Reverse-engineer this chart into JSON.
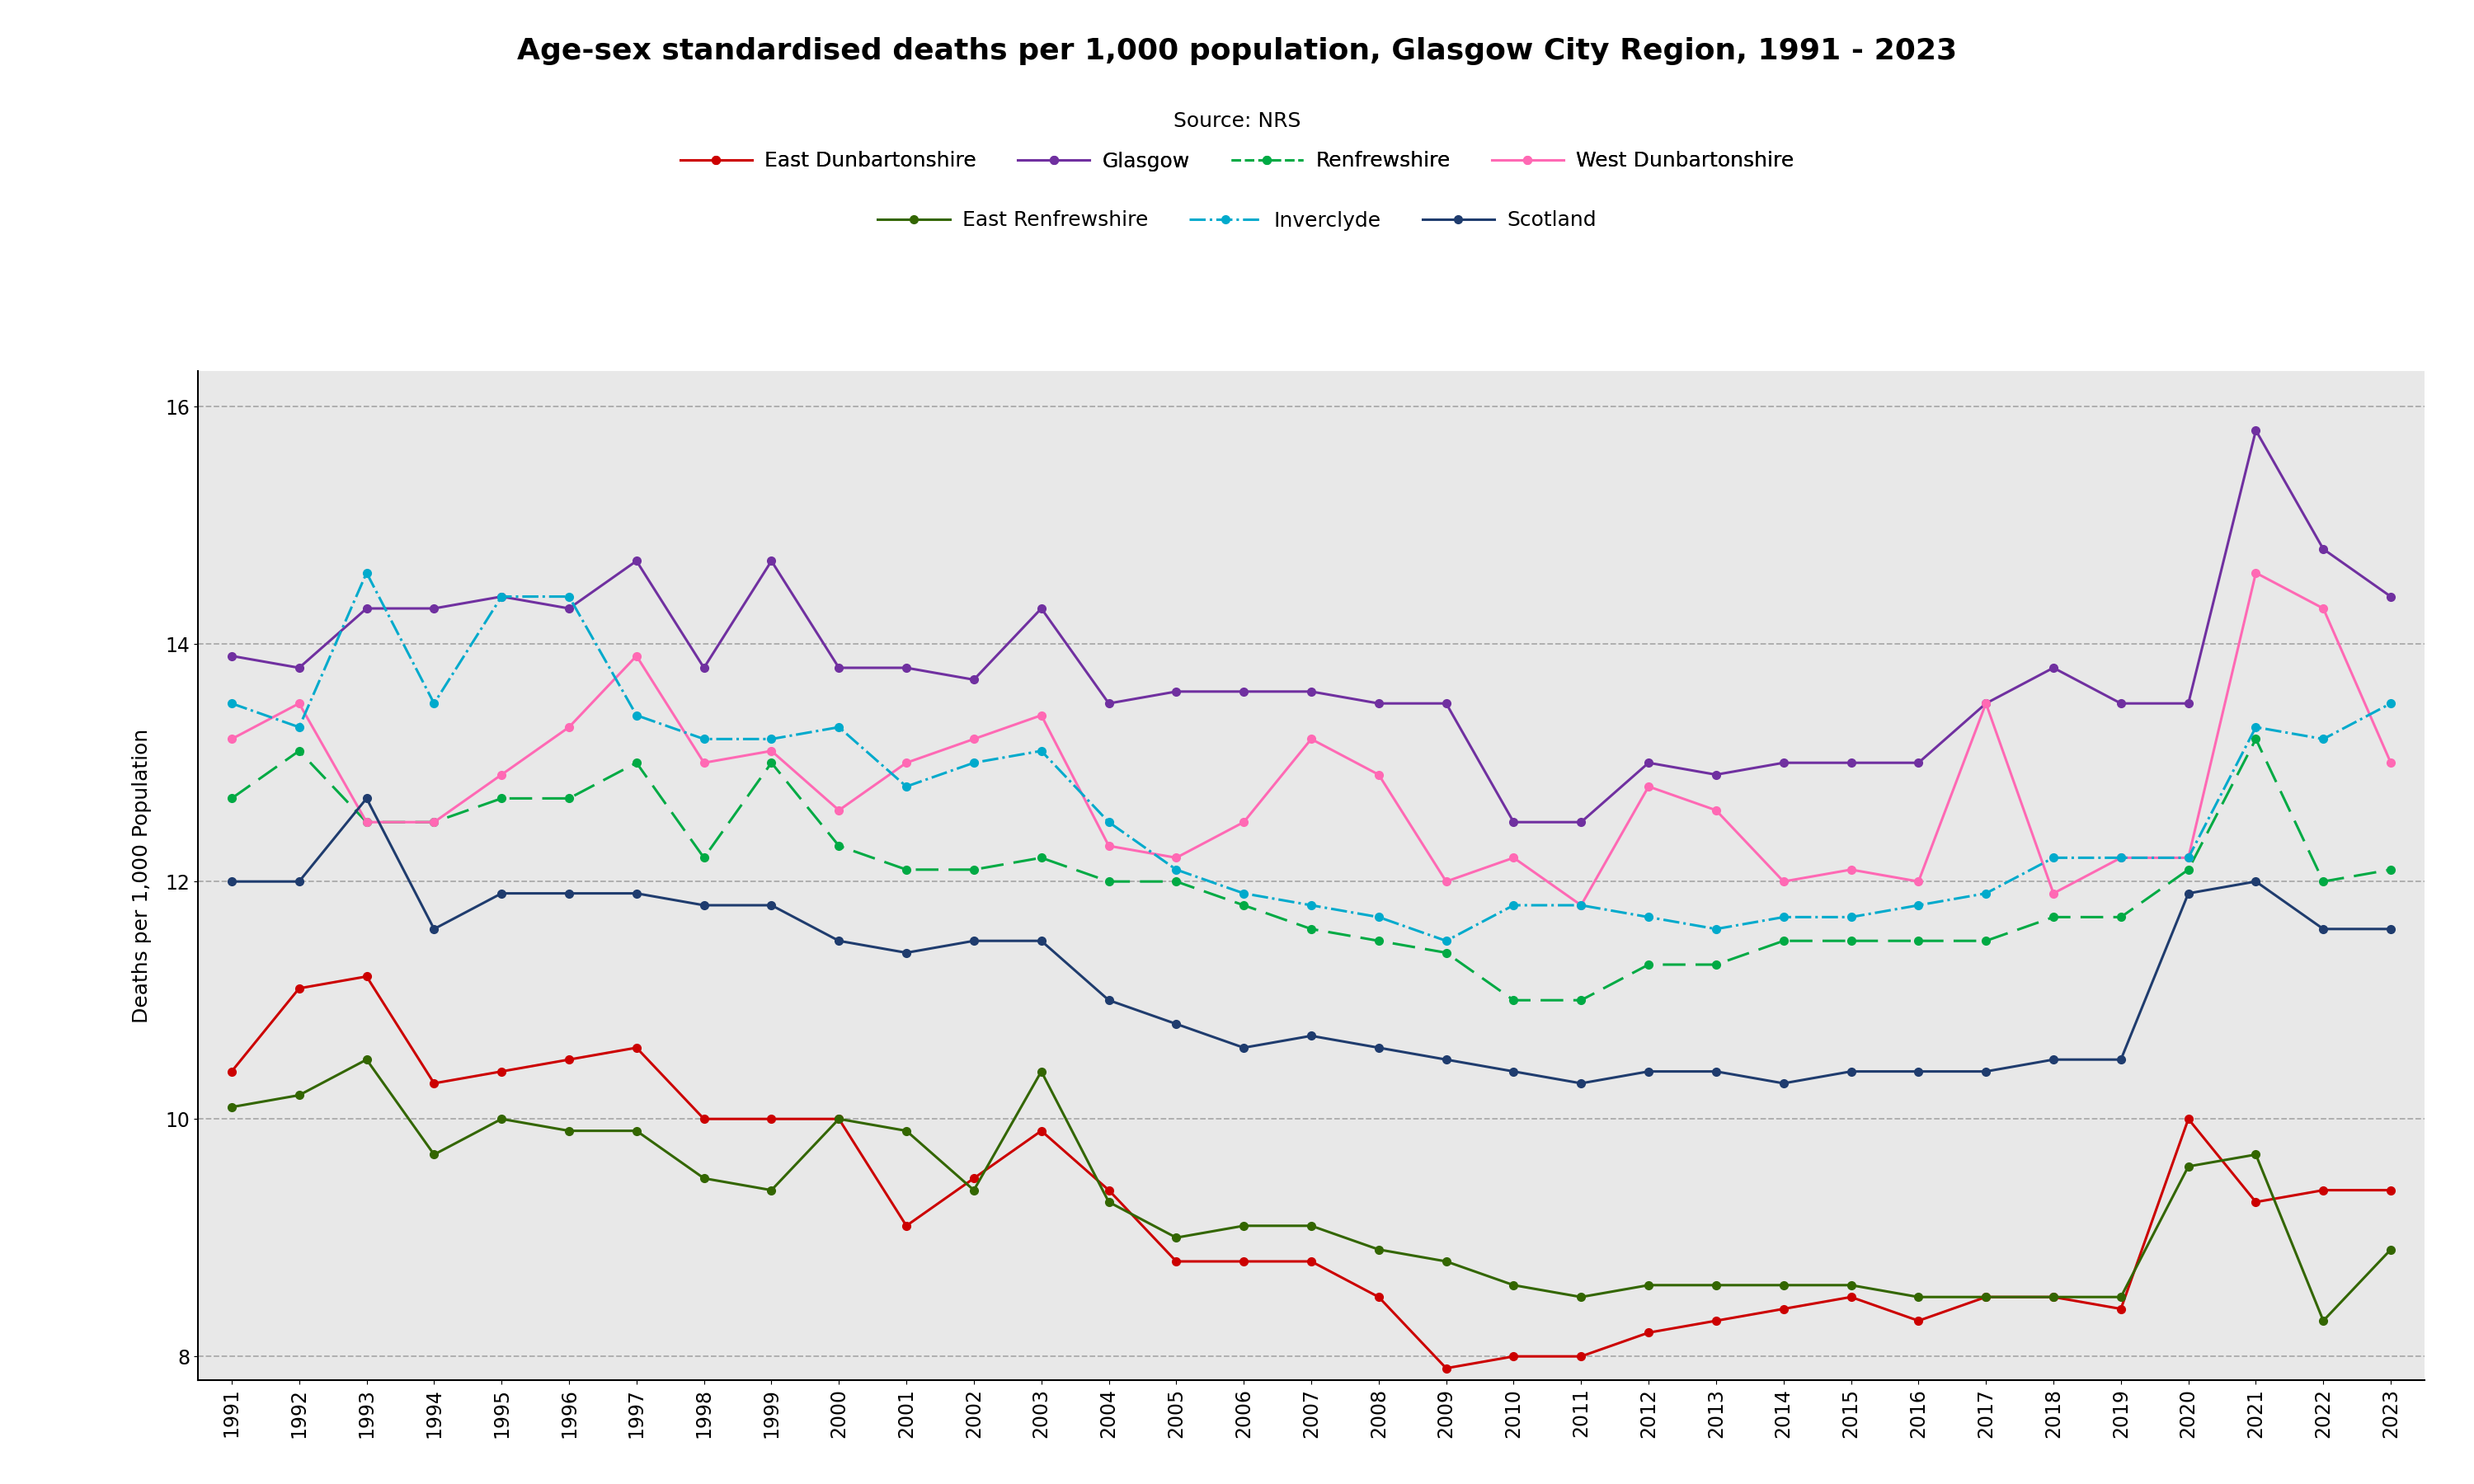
{
  "title": "Age-sex standardised deaths per 1,000 population, Glasgow City Region, 1991 - 2023",
  "source": "Source: NRS",
  "ylabel": "Deaths per 1,000 Population",
  "years": [
    1991,
    1992,
    1993,
    1994,
    1995,
    1996,
    1997,
    1998,
    1999,
    2000,
    2001,
    2002,
    2003,
    2004,
    2005,
    2006,
    2007,
    2008,
    2009,
    2010,
    2011,
    2012,
    2013,
    2014,
    2015,
    2016,
    2017,
    2018,
    2019,
    2020,
    2021,
    2022,
    2023
  ],
  "series": {
    "East Dunbartonshire": {
      "color": "#cc0000",
      "linestyle": "-",
      "marker": "o",
      "markersize": 7,
      "linewidth": 2.2,
      "values": [
        10.4,
        11.1,
        11.2,
        10.3,
        10.4,
        10.5,
        10.6,
        10.0,
        10.0,
        10.0,
        9.1,
        9.5,
        9.9,
        9.4,
        8.8,
        8.8,
        8.8,
        8.5,
        7.9,
        8.0,
        8.0,
        8.2,
        8.3,
        8.4,
        8.5,
        8.3,
        8.5,
        8.5,
        8.4,
        10.0,
        9.3,
        9.4,
        9.4
      ]
    },
    "Glasgow": {
      "color": "#7030a0",
      "linestyle": "-",
      "marker": "o",
      "markersize": 7,
      "linewidth": 2.2,
      "values": [
        13.9,
        13.8,
        14.3,
        14.3,
        14.4,
        14.3,
        14.7,
        13.8,
        14.7,
        13.8,
        13.8,
        13.7,
        14.3,
        13.5,
        13.6,
        13.6,
        13.6,
        13.5,
        13.5,
        12.5,
        12.5,
        13.0,
        12.9,
        13.0,
        13.0,
        13.0,
        13.5,
        13.8,
        13.5,
        13.5,
        15.8,
        14.8,
        14.4
      ]
    },
    "Renfrewshire": {
      "color": "#00aa44",
      "linestyle": "--",
      "marker": "o",
      "markersize": 7,
      "linewidth": 2.2,
      "values": [
        12.7,
        13.1,
        12.5,
        12.5,
        12.7,
        12.7,
        13.0,
        12.2,
        13.0,
        12.3,
        12.1,
        12.1,
        12.2,
        12.0,
        12.0,
        11.8,
        11.6,
        11.5,
        11.4,
        11.0,
        11.0,
        11.3,
        11.3,
        11.5,
        11.5,
        11.5,
        11.5,
        11.7,
        11.7,
        12.1,
        13.2,
        12.0,
        12.1
      ]
    },
    "West Dunbartonshire": {
      "color": "#ff69b4",
      "linestyle": "-",
      "marker": "o",
      "markersize": 7,
      "linewidth": 2.2,
      "values": [
        13.2,
        13.5,
        12.5,
        12.5,
        12.9,
        13.3,
        13.9,
        13.0,
        13.1,
        12.6,
        13.0,
        13.2,
        13.4,
        12.3,
        12.2,
        12.5,
        13.2,
        12.9,
        12.0,
        12.2,
        11.8,
        12.8,
        12.6,
        12.0,
        12.1,
        12.0,
        13.5,
        11.9,
        12.2,
        12.2,
        14.6,
        14.3,
        13.0
      ]
    },
    "East Renfrewshire": {
      "color": "#336600",
      "linestyle": "-",
      "marker": "o",
      "markersize": 7,
      "linewidth": 2.2,
      "values": [
        10.1,
        10.2,
        10.5,
        9.7,
        10.0,
        9.9,
        9.9,
        9.5,
        9.4,
        10.0,
        9.9,
        9.4,
        10.4,
        9.3,
        9.0,
        9.1,
        9.1,
        8.9,
        8.8,
        8.6,
        8.5,
        8.6,
        8.6,
        8.6,
        8.6,
        8.5,
        8.5,
        8.5,
        8.5,
        9.6,
        9.7,
        8.3,
        8.9
      ]
    },
    "Inverclyde": {
      "color": "#00aacc",
      "linestyle": "-.",
      "marker": "o",
      "markersize": 7,
      "linewidth": 2.2,
      "values": [
        13.5,
        13.3,
        14.6,
        13.5,
        14.4,
        14.4,
        13.4,
        13.2,
        13.2,
        13.3,
        12.8,
        13.0,
        13.1,
        12.5,
        12.1,
        11.9,
        11.8,
        11.7,
        11.5,
        11.8,
        11.8,
        11.7,
        11.6,
        11.7,
        11.7,
        11.8,
        11.9,
        12.2,
        12.2,
        12.2,
        13.3,
        13.2,
        13.5
      ]
    },
    "Scotland": {
      "color": "#1f3c6e",
      "linestyle": "-",
      "marker": "o",
      "markersize": 7,
      "linewidth": 2.2,
      "values": [
        12.0,
        12.0,
        12.7,
        11.6,
        11.9,
        11.9,
        11.9,
        11.8,
        11.8,
        11.5,
        11.4,
        11.5,
        11.5,
        11.0,
        10.8,
        10.6,
        10.7,
        10.6,
        10.5,
        10.4,
        10.3,
        10.4,
        10.4,
        10.3,
        10.4,
        10.4,
        10.4,
        10.5,
        10.5,
        11.9,
        12.0,
        11.6,
        11.6
      ]
    }
  },
  "ylim": [
    7.8,
    16.3
  ],
  "yticks": [
    8,
    10,
    12,
    14,
    16
  ],
  "background_color": "#e8e8e8",
  "plot_bgcolor": "#e8e8e8",
  "title_fontsize": 26,
  "source_fontsize": 18,
  "ylabel_fontsize": 18,
  "tick_fontsize": 17,
  "legend_fontsize": 18,
  "legend_row1": [
    "East Dunbartonshire",
    "Glasgow",
    "Renfrewshire",
    "West Dunbartonshire"
  ],
  "legend_row2": [
    "East Renfrewshire",
    "Inverclyde",
    "Scotland"
  ]
}
